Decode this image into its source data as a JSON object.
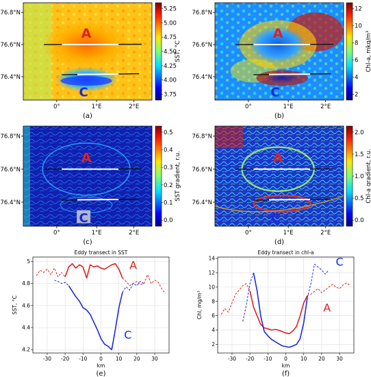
{
  "colors": {
    "eddy_a": "#e02020",
    "eddy_c": "#1a2adb",
    "transect_white": "#ffffff",
    "transect_black": "#111111"
  },
  "map_axes": {
    "lat_ticks": [
      "76.8°N",
      "76.6°N",
      "76.4°N"
    ],
    "lon_ticks": [
      "0°",
      "1°E",
      "2°E"
    ]
  },
  "maps": [
    {
      "panel": "(a)",
      "colorbar_label": "SST, °C",
      "cb_ticks": [
        "5.25",
        "5.00",
        "4.75",
        "4.50",
        "4.25",
        "4.00",
        "3.75"
      ],
      "colormap": "jet",
      "label_a": "A",
      "label_c": "C"
    },
    {
      "panel": "(b)",
      "colorbar_label": "Chl-a, mkg/m³",
      "cb_ticks": [
        "12",
        "10",
        "8",
        "6",
        "4",
        "2"
      ],
      "colormap": "jet",
      "label_a": "A",
      "label_c": "C"
    },
    {
      "panel": "(c)",
      "colorbar_label": "SST gradient, r.u.",
      "cb_ticks": [
        "0.5",
        "0.4",
        "0.3",
        "0.2",
        "0.1",
        "0.0"
      ],
      "colormap": "jet",
      "label_a": "A",
      "label_c": "C"
    },
    {
      "panel": "(d)",
      "colorbar_label": "Chl-a gradient, r.u.",
      "cb_ticks": [
        "2.0",
        "1.5",
        "1.0",
        "0.5",
        "0.0"
      ],
      "colormap": "jet",
      "label_a": "A",
      "label_c": "C"
    }
  ],
  "chart_data": [
    {
      "panel": "(e)",
      "type": "line",
      "title": "Eddy transect in SST",
      "xlabel": "km",
      "ylabel": "SST, °C",
      "xlim": [
        -38,
        38
      ],
      "ylim": [
        4.17,
        5.04
      ],
      "xticks": [
        -30,
        -20,
        -10,
        0,
        10,
        20,
        30
      ],
      "yticks": [
        4.2,
        4.4,
        4.6,
        4.8,
        5.0
      ],
      "series": [
        {
          "name": "A",
          "color": "#e02020",
          "style": "solid",
          "x": [
            -20,
            -18,
            -16,
            -14,
            -12,
            -10,
            -8,
            -6,
            -4,
            -2,
            0,
            2,
            4,
            6,
            8,
            10,
            12
          ],
          "y": [
            4.86,
            4.95,
            4.98,
            4.94,
            4.97,
            4.95,
            4.85,
            4.97,
            4.95,
            4.96,
            4.94,
            4.93,
            4.95,
            4.97,
            4.98,
            4.93,
            4.85
          ]
        },
        {
          "name": "",
          "color": "#e02020",
          "style": "dashed",
          "x": [
            -36,
            -34,
            -32,
            -30,
            -28,
            -26,
            -24,
            -22,
            -20
          ],
          "y": [
            4.87,
            4.92,
            4.9,
            4.93,
            4.88,
            4.94,
            4.86,
            4.9,
            4.86
          ]
        },
        {
          "name": "",
          "color": "#e02020",
          "style": "dashed",
          "x": [
            12,
            14,
            16,
            18,
            20,
            22,
            24,
            26,
            28,
            30,
            32,
            34,
            36
          ],
          "y": [
            4.85,
            4.82,
            4.78,
            4.8,
            4.82,
            4.79,
            4.8,
            4.88,
            4.8,
            4.83,
            4.81,
            4.75,
            4.71
          ]
        },
        {
          "name": "C",
          "color": "#1a2adb",
          "style": "solid",
          "x": [
            -18,
            -16,
            -14,
            -12,
            -10,
            -8,
            -6,
            -4,
            -2,
            0,
            2,
            4,
            6,
            8,
            10,
            12
          ],
          "y": [
            4.78,
            4.73,
            4.68,
            4.64,
            4.58,
            4.56,
            4.52,
            4.45,
            4.38,
            4.3,
            4.25,
            4.23,
            4.2,
            4.38,
            4.58,
            4.72
          ]
        },
        {
          "name": "",
          "color": "#1a2adb",
          "style": "dashed",
          "x": [
            -26,
            -24,
            -22,
            -20,
            -18
          ],
          "y": [
            4.83,
            4.82,
            4.8,
            4.81,
            4.78
          ]
        },
        {
          "name": "",
          "color": "#1a2adb",
          "style": "dashed",
          "x": [
            12,
            14,
            16,
            18,
            20,
            22,
            24
          ],
          "y": [
            4.72,
            4.77,
            4.74,
            4.8,
            4.78,
            4.82,
            4.8
          ]
        }
      ],
      "annotations": [
        {
          "text": "A",
          "x": 18,
          "y": 4.93,
          "color": "#e02020"
        },
        {
          "text": "C",
          "x": 15,
          "y": 4.3,
          "color": "#1a2adb"
        }
      ]
    },
    {
      "panel": "(f)",
      "type": "line",
      "title": "Eddy transect in chl-a",
      "xlabel": "km",
      "ylabel": "Chl, mg/m³",
      "xlim": [
        -38,
        38
      ],
      "ylim": [
        0.8,
        14.2
      ],
      "xticks": [
        -30,
        -20,
        -10,
        0,
        10,
        20,
        30
      ],
      "yticks": [
        2,
        4,
        6,
        8,
        10,
        12,
        14
      ],
      "series": [
        {
          "name": "A",
          "color": "#e02020",
          "style": "solid",
          "x": [
            -20,
            -18,
            -16,
            -14,
            -12,
            -10,
            -8,
            -6,
            -4,
            -2,
            0,
            2,
            4,
            6,
            8,
            10,
            12
          ],
          "y": [
            9.5,
            7.2,
            6.0,
            4.8,
            4.3,
            4.2,
            4.0,
            4.1,
            4.0,
            3.8,
            3.6,
            3.5,
            3.9,
            4.5,
            6.0,
            7.8,
            8.8
          ]
        },
        {
          "name": "",
          "color": "#e02020",
          "style": "dashed",
          "x": [
            -36,
            -34,
            -32,
            -30,
            -28,
            -26,
            -24,
            -22,
            -20
          ],
          "y": [
            6.2,
            7.0,
            6.5,
            7.8,
            9.0,
            9.6,
            10.2,
            10.5,
            9.5
          ]
        },
        {
          "name": "",
          "color": "#e02020",
          "style": "dashed",
          "x": [
            12,
            14,
            16,
            18,
            20,
            22,
            24,
            26,
            28,
            30,
            32,
            34,
            36
          ],
          "y": [
            8.8,
            9.0,
            9.4,
            9.8,
            9.2,
            9.6,
            10.0,
            10.4,
            10.0,
            9.8,
            10.3,
            10.6,
            10.2
          ]
        },
        {
          "name": "C",
          "color": "#1a2adb",
          "style": "solid",
          "x": [
            -18,
            -16,
            -14,
            -12,
            -10,
            -8,
            -6,
            -4,
            -2,
            0,
            2,
            4,
            6,
            8,
            10,
            12
          ],
          "y": [
            12.0,
            9.5,
            6.0,
            3.8,
            3.2,
            2.7,
            2.4,
            2.1,
            1.8,
            1.7,
            1.6,
            1.8,
            2.0,
            2.8,
            5.0,
            8.5
          ]
        },
        {
          "name": "",
          "color": "#1a2adb",
          "style": "dashed",
          "x": [
            -24,
            -22,
            -20,
            -18
          ],
          "y": [
            5.2,
            7.5,
            10.5,
            12.0
          ]
        },
        {
          "name": "",
          "color": "#1a2adb",
          "style": "dashed",
          "x": [
            12,
            14,
            16,
            18,
            20,
            22,
            24
          ],
          "y": [
            8.5,
            10.5,
            13.2,
            12.8,
            12.4,
            11.8,
            12.4
          ]
        }
      ],
      "annotations": [
        {
          "text": "C",
          "x": 30,
          "y": 13.0,
          "color": "#1a2adb"
        },
        {
          "text": "A",
          "x": 23,
          "y": 6.6,
          "color": "#e02020"
        }
      ]
    }
  ],
  "panel_labels": {
    "e": "(e)",
    "f": "(f)"
  }
}
